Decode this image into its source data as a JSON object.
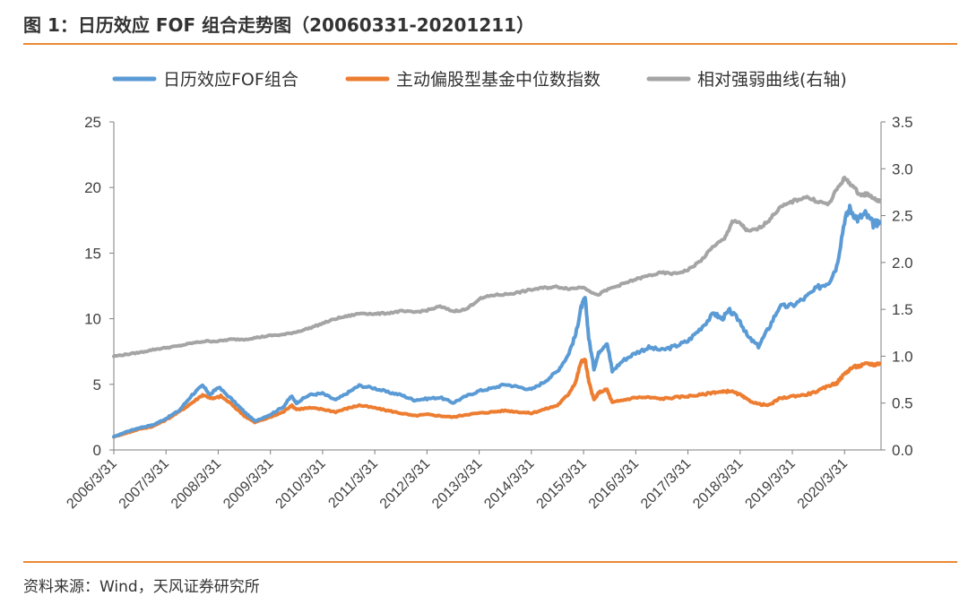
{
  "header": {
    "title": "图 1：日历效应 FOF 组合走势图（20060331-20201211）"
  },
  "footer": {
    "source": "资料来源：Wind，天风证券研究所"
  },
  "colors": {
    "fof": "#5b9bd5",
    "median": "#ed7d31",
    "relative": "#a5a5a5",
    "rule": "#ea8a34",
    "axis": "#7f7f7f"
  },
  "chart_data": {
    "type": "line",
    "title": "",
    "xlabel": "",
    "ylabel": "",
    "legend_position": "top",
    "grid": false,
    "x_ticks": [
      "2006/3/31",
      "2007/3/31",
      "2008/3/31",
      "2009/3/31",
      "2010/3/31",
      "2011/3/31",
      "2012/3/31",
      "2013/3/31",
      "2014/3/31",
      "2015/3/31",
      "2016/3/31",
      "2017/3/31",
      "2018/3/31",
      "2019/3/31",
      "2020/3/31"
    ],
    "x_range": [
      2006.25,
      2020.95
    ],
    "y_left": {
      "range": [
        0,
        25
      ],
      "ticks": [
        "0",
        "5",
        "10",
        "15",
        "20",
        "25"
      ]
    },
    "y_right": {
      "range": [
        0,
        3.5
      ],
      "ticks": [
        "0.0",
        "0.5",
        "1.0",
        "1.5",
        "2.0",
        "2.5",
        "3.0",
        "3.5"
      ]
    },
    "series": [
      {
        "name": "日历效应FOF组合",
        "axis": "left",
        "color_key": "fof",
        "points": [
          [
            2006.25,
            1.0
          ],
          [
            2006.5,
            1.4
          ],
          [
            2006.75,
            1.7
          ],
          [
            2007.0,
            1.9
          ],
          [
            2007.25,
            2.4
          ],
          [
            2007.5,
            3.0
          ],
          [
            2007.75,
            4.2
          ],
          [
            2007.95,
            4.9
          ],
          [
            2008.1,
            4.2
          ],
          [
            2008.25,
            4.8
          ],
          [
            2008.5,
            3.9
          ],
          [
            2008.75,
            2.9
          ],
          [
            2008.95,
            2.2
          ],
          [
            2009.25,
            2.7
          ],
          [
            2009.5,
            3.3
          ],
          [
            2009.65,
            4.1
          ],
          [
            2009.75,
            3.6
          ],
          [
            2010.0,
            4.2
          ],
          [
            2010.25,
            4.3
          ],
          [
            2010.5,
            3.8
          ],
          [
            2010.75,
            4.4
          ],
          [
            2010.95,
            4.9
          ],
          [
            2011.25,
            4.7
          ],
          [
            2011.5,
            4.4
          ],
          [
            2011.75,
            4.2
          ],
          [
            2012.0,
            3.8
          ],
          [
            2012.25,
            3.9
          ],
          [
            2012.5,
            4.0
          ],
          [
            2012.75,
            3.6
          ],
          [
            2013.0,
            4.1
          ],
          [
            2013.25,
            4.5
          ],
          [
            2013.5,
            4.7
          ],
          [
            2013.75,
            5.0
          ],
          [
            2014.0,
            4.8
          ],
          [
            2014.25,
            4.6
          ],
          [
            2014.5,
            5.2
          ],
          [
            2014.75,
            6.0
          ],
          [
            2014.95,
            7.2
          ],
          [
            2015.1,
            8.8
          ],
          [
            2015.2,
            10.8
          ],
          [
            2015.28,
            11.6
          ],
          [
            2015.35,
            8.5
          ],
          [
            2015.45,
            6.2
          ],
          [
            2015.55,
            7.5
          ],
          [
            2015.7,
            8.2
          ],
          [
            2015.8,
            6.0
          ],
          [
            2016.0,
            6.8
          ],
          [
            2016.25,
            7.4
          ],
          [
            2016.5,
            7.8
          ],
          [
            2016.75,
            7.6
          ],
          [
            2017.0,
            7.9
          ],
          [
            2017.25,
            8.3
          ],
          [
            2017.5,
            9.3
          ],
          [
            2017.75,
            10.4
          ],
          [
            2017.9,
            10.0
          ],
          [
            2018.05,
            10.6
          ],
          [
            2018.25,
            9.8
          ],
          [
            2018.4,
            8.6
          ],
          [
            2018.6,
            7.9
          ],
          [
            2018.8,
            9.3
          ],
          [
            2019.0,
            10.9
          ],
          [
            2019.25,
            11.0
          ],
          [
            2019.5,
            11.6
          ],
          [
            2019.75,
            12.4
          ],
          [
            2019.95,
            12.8
          ],
          [
            2020.1,
            14.0
          ],
          [
            2020.25,
            17.5
          ],
          [
            2020.35,
            18.4
          ],
          [
            2020.5,
            17.6
          ],
          [
            2020.65,
            18.0
          ],
          [
            2020.8,
            17.2
          ],
          [
            2020.92,
            17.4
          ]
        ]
      },
      {
        "name": "主动偏股型基金中位数指数",
        "axis": "left",
        "color_key": "median",
        "points": [
          [
            2006.25,
            1.0
          ],
          [
            2006.5,
            1.3
          ],
          [
            2006.75,
            1.6
          ],
          [
            2007.0,
            1.8
          ],
          [
            2007.25,
            2.3
          ],
          [
            2007.5,
            2.9
          ],
          [
            2007.75,
            3.6
          ],
          [
            2007.95,
            4.2
          ],
          [
            2008.15,
            3.9
          ],
          [
            2008.3,
            4.1
          ],
          [
            2008.5,
            3.5
          ],
          [
            2008.75,
            2.6
          ],
          [
            2008.95,
            2.1
          ],
          [
            2009.25,
            2.5
          ],
          [
            2009.5,
            2.9
          ],
          [
            2009.65,
            3.4
          ],
          [
            2009.75,
            3.1
          ],
          [
            2010.0,
            3.2
          ],
          [
            2010.25,
            3.1
          ],
          [
            2010.5,
            2.9
          ],
          [
            2010.75,
            3.2
          ],
          [
            2010.95,
            3.4
          ],
          [
            2011.25,
            3.2
          ],
          [
            2011.5,
            3.0
          ],
          [
            2011.75,
            2.8
          ],
          [
            2012.0,
            2.6
          ],
          [
            2012.25,
            2.7
          ],
          [
            2012.5,
            2.6
          ],
          [
            2012.75,
            2.5
          ],
          [
            2013.0,
            2.7
          ],
          [
            2013.25,
            2.8
          ],
          [
            2013.5,
            2.9
          ],
          [
            2013.75,
            3.0
          ],
          [
            2014.0,
            2.9
          ],
          [
            2014.25,
            2.8
          ],
          [
            2014.5,
            3.1
          ],
          [
            2014.75,
            3.4
          ],
          [
            2014.95,
            4.2
          ],
          [
            2015.1,
            5.2
          ],
          [
            2015.2,
            6.7
          ],
          [
            2015.28,
            6.9
          ],
          [
            2015.35,
            5.2
          ],
          [
            2015.45,
            3.8
          ],
          [
            2015.55,
            4.4
          ],
          [
            2015.7,
            4.6
          ],
          [
            2015.8,
            3.6
          ],
          [
            2016.0,
            3.8
          ],
          [
            2016.25,
            4.0
          ],
          [
            2016.5,
            4.0
          ],
          [
            2016.75,
            3.9
          ],
          [
            2017.0,
            4.0
          ],
          [
            2017.25,
            4.1
          ],
          [
            2017.5,
            4.2
          ],
          [
            2017.75,
            4.4
          ],
          [
            2017.9,
            4.4
          ],
          [
            2018.05,
            4.5
          ],
          [
            2018.25,
            4.2
          ],
          [
            2018.4,
            3.8
          ],
          [
            2018.6,
            3.5
          ],
          [
            2018.8,
            3.4
          ],
          [
            2019.0,
            3.9
          ],
          [
            2019.25,
            4.1
          ],
          [
            2019.5,
            4.2
          ],
          [
            2019.75,
            4.5
          ],
          [
            2019.95,
            4.9
          ],
          [
            2020.1,
            5.1
          ],
          [
            2020.25,
            5.8
          ],
          [
            2020.4,
            6.3
          ],
          [
            2020.55,
            6.4
          ],
          [
            2020.7,
            6.6
          ],
          [
            2020.82,
            6.5
          ],
          [
            2020.92,
            6.6
          ]
        ]
      },
      {
        "name": "相对强弱曲线(右轴)",
        "axis": "right",
        "color_key": "relative",
        "points": [
          [
            2006.25,
            1.0
          ],
          [
            2006.5,
            1.02
          ],
          [
            2006.75,
            1.04
          ],
          [
            2007.0,
            1.07
          ],
          [
            2007.25,
            1.09
          ],
          [
            2007.5,
            1.11
          ],
          [
            2007.75,
            1.14
          ],
          [
            2008.0,
            1.16
          ],
          [
            2008.25,
            1.16
          ],
          [
            2008.5,
            1.18
          ],
          [
            2008.75,
            1.18
          ],
          [
            2009.0,
            1.2
          ],
          [
            2009.25,
            1.22
          ],
          [
            2009.5,
            1.23
          ],
          [
            2009.75,
            1.26
          ],
          [
            2010.0,
            1.3
          ],
          [
            2010.25,
            1.35
          ],
          [
            2010.5,
            1.4
          ],
          [
            2010.75,
            1.43
          ],
          [
            2011.0,
            1.46
          ],
          [
            2011.25,
            1.45
          ],
          [
            2011.5,
            1.46
          ],
          [
            2011.75,
            1.48
          ],
          [
            2012.0,
            1.47
          ],
          [
            2012.25,
            1.49
          ],
          [
            2012.5,
            1.53
          ],
          [
            2012.75,
            1.48
          ],
          [
            2013.0,
            1.5
          ],
          [
            2013.25,
            1.61
          ],
          [
            2013.5,
            1.65
          ],
          [
            2013.75,
            1.66
          ],
          [
            2014.0,
            1.68
          ],
          [
            2014.25,
            1.71
          ],
          [
            2014.5,
            1.73
          ],
          [
            2014.75,
            1.74
          ],
          [
            2015.0,
            1.72
          ],
          [
            2015.25,
            1.74
          ],
          [
            2015.5,
            1.65
          ],
          [
            2015.75,
            1.72
          ],
          [
            2016.0,
            1.77
          ],
          [
            2016.25,
            1.82
          ],
          [
            2016.5,
            1.86
          ],
          [
            2016.75,
            1.89
          ],
          [
            2017.0,
            1.88
          ],
          [
            2017.25,
            1.92
          ],
          [
            2017.5,
            2.02
          ],
          [
            2017.75,
            2.18
          ],
          [
            2017.95,
            2.25
          ],
          [
            2018.1,
            2.44
          ],
          [
            2018.25,
            2.42
          ],
          [
            2018.4,
            2.33
          ],
          [
            2018.6,
            2.36
          ],
          [
            2018.8,
            2.45
          ],
          [
            2019.0,
            2.58
          ],
          [
            2019.25,
            2.65
          ],
          [
            2019.5,
            2.7
          ],
          [
            2019.75,
            2.65
          ],
          [
            2019.95,
            2.62
          ],
          [
            2020.1,
            2.78
          ],
          [
            2020.25,
            2.9
          ],
          [
            2020.4,
            2.82
          ],
          [
            2020.55,
            2.72
          ],
          [
            2020.7,
            2.73
          ],
          [
            2020.82,
            2.68
          ],
          [
            2020.92,
            2.65
          ]
        ]
      }
    ]
  }
}
